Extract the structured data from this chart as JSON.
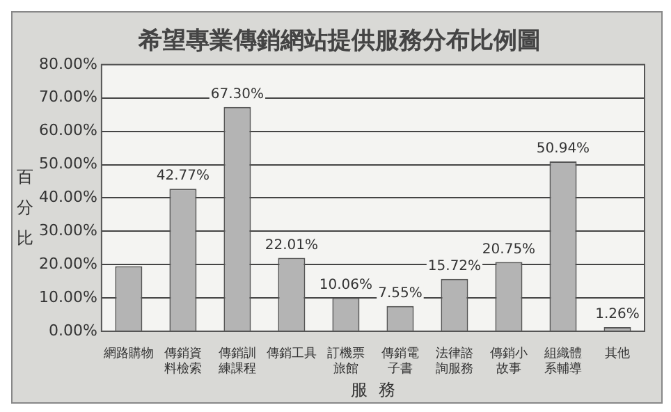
{
  "chart_data": {
    "type": "bar",
    "title": "希望專業傳銷網站提供服務分布比例圖",
    "xlabel": "服務",
    "ylabel": "百分比",
    "categories": [
      "網路購物",
      "傳銷資料檢索",
      "傳銷訓練課程",
      "傳銷工具",
      "訂機票旅館",
      "傳銷電子書",
      "法律諮詢服務",
      "傳銷小故事",
      "組織體系輔導",
      "其他"
    ],
    "values": [
      19.5,
      42.77,
      67.3,
      22.01,
      10.06,
      7.55,
      15.72,
      20.75,
      50.94,
      1.26
    ],
    "value_labels": [
      null,
      "42.77%",
      "67.30%",
      "22.01%",
      "10.06%",
      "7.55%",
      "15.72%",
      "20.75%",
      "50.94%",
      "1.26%"
    ],
    "color": "#b4b4b4",
    "ylim": [
      0,
      80
    ],
    "yticks": [
      {
        "value": 0,
        "label": "0.00%"
      },
      {
        "value": 10,
        "label": "10.00%"
      },
      {
        "value": 20,
        "label": "20.00%"
      },
      {
        "value": 30,
        "label": "30.00%"
      },
      {
        "value": 40,
        "label": "40.00%"
      },
      {
        "value": 50,
        "label": "50.00%"
      },
      {
        "value": 60,
        "label": "60.00%"
      },
      {
        "value": 70,
        "label": "70.00%"
      },
      {
        "value": 80,
        "label": "80.00%"
      }
    ],
    "grid": "y",
    "legend": false
  }
}
